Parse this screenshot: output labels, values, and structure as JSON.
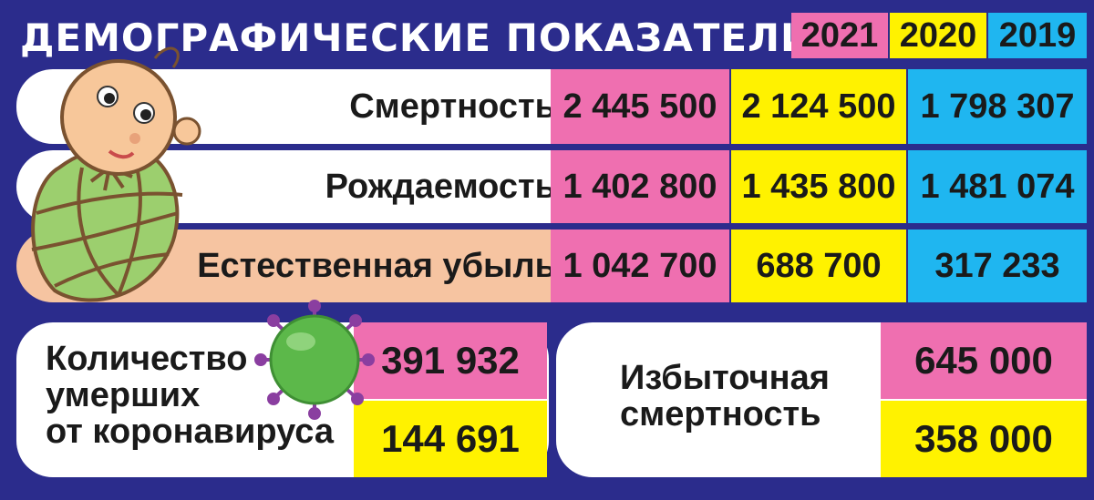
{
  "title": "ДЕМОГРАФИЧЕСКИЕ ПОКАЗАТЕЛИ",
  "colors": {
    "background": "#2b2c8c",
    "y2021": "#ef6fb0",
    "y2020": "#fff200",
    "y2019": "#1fb6f0",
    "loss_row": "#f6c4a1"
  },
  "chart_data": {
    "type": "table",
    "title": "ДЕМОГРАФИЧЕСКИЕ ПОКАЗАТЕЛИ",
    "columns": [
      "2021",
      "2020",
      "2019"
    ],
    "rows": [
      {
        "label": "Смертность",
        "values": [
          "2 445 500",
          "2 124 500",
          "1 798 307"
        ]
      },
      {
        "label": "Рождаемость",
        "values": [
          "1 402 800",
          "1 435 800",
          "1 481 074"
        ]
      },
      {
        "label": "Естественная убыль",
        "values": [
          "1 042 700",
          "688 700",
          "317 233"
        ]
      }
    ],
    "covid": {
      "label": "Количество\nумерших\nот коронавируса",
      "values": [
        "391 932",
        "144 691"
      ]
    },
    "excess": {
      "label": "Избыточная\nсмертность",
      "values": [
        "645 000",
        "358 000"
      ]
    }
  }
}
